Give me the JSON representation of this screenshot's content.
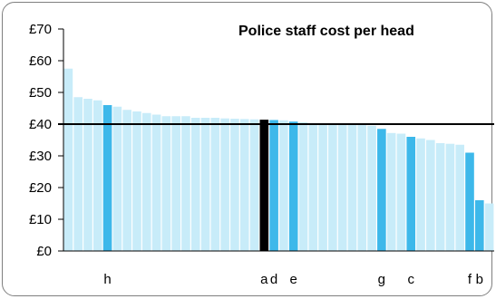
{
  "chart_data": {
    "type": "bar",
    "title": "Police staff cost per head",
    "y_ticks": [
      "£0",
      "£10",
      "£20",
      "£30",
      "£40",
      "£50",
      "£60",
      "£70"
    ],
    "ylim": [
      0,
      70
    ],
    "reference_line": 40,
    "values": [
      57.5,
      48.5,
      48,
      47.5,
      46,
      45.5,
      44.5,
      44,
      43.5,
      43,
      42.5,
      42.5,
      42.5,
      42,
      42,
      42,
      41.8,
      41.7,
      41.6,
      41.5,
      41.4,
      41.3,
      41.2,
      40.8,
      40.6,
      40.3,
      40.1,
      40,
      39.9,
      39.8,
      39.7,
      39.5,
      38.5,
      37.2,
      37,
      36,
      35.5,
      35,
      34,
      33.8,
      33.5,
      31,
      16,
      15
    ],
    "bar_kinds": [
      "n",
      "n",
      "n",
      "n",
      "h",
      "n",
      "n",
      "n",
      "n",
      "n",
      "n",
      "n",
      "n",
      "n",
      "n",
      "n",
      "n",
      "n",
      "n",
      "n",
      "a",
      "h",
      "n",
      "h",
      "n",
      "n",
      "n",
      "n",
      "n",
      "n",
      "n",
      "n",
      "h",
      "n",
      "n",
      "h",
      "n",
      "n",
      "n",
      "n",
      "n",
      "h",
      "h",
      "n"
    ],
    "bar_labels": [
      "",
      "",
      "",
      "",
      "h",
      "",
      "",
      "",
      "",
      "",
      "",
      "",
      "",
      "",
      "",
      "",
      "",
      "",
      "",
      "",
      "a",
      "d",
      "",
      "e",
      "",
      "",
      "",
      "",
      "",
      "",
      "",
      "",
      "g",
      "",
      "",
      "c",
      "",
      "",
      "",
      "",
      "",
      "f",
      "b",
      ""
    ],
    "colors": {
      "normal": "#c8ecf9",
      "highlight": "#3db8ea",
      "selected": "#000000",
      "line": "#000000"
    },
    "grid": false,
    "legend": "none"
  }
}
